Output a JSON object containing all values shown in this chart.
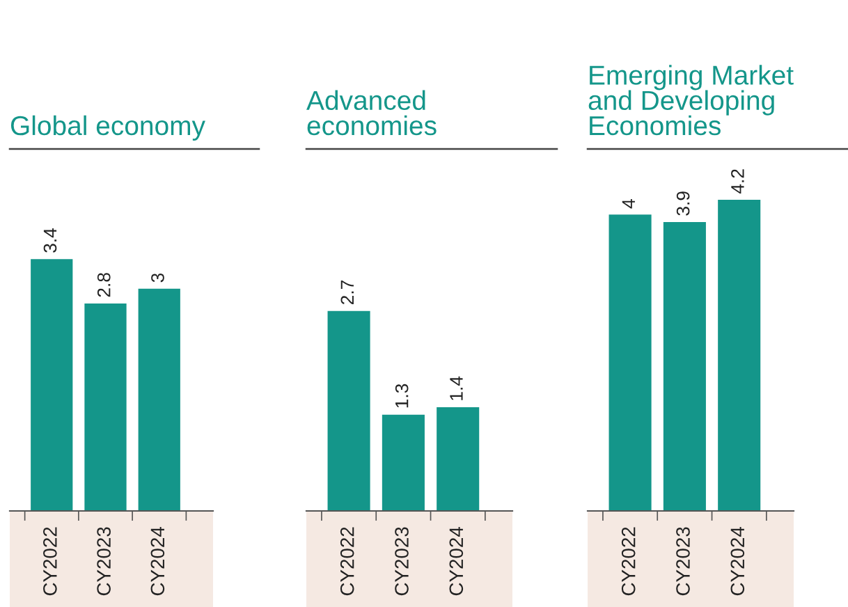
{
  "chart_data": [
    {
      "type": "bar",
      "title": "Global economy",
      "categories": [
        "CY2022",
        "CY2023",
        "CY2024"
      ],
      "values": [
        3.4,
        2.8,
        3
      ],
      "color": "#14968a",
      "data_labels": true
    },
    {
      "type": "bar",
      "title": "Advanced economies",
      "categories": [
        "CY2022",
        "CY2023",
        "CY2024"
      ],
      "values": [
        2.7,
        1.3,
        1.4
      ],
      "color": "#14968a",
      "data_labels": true
    },
    {
      "type": "bar",
      "title": "Emerging Market and Developing Economies",
      "categories": [
        "CY2022",
        "CY2023",
        "CY2024"
      ],
      "values": [
        4,
        3.9,
        4.2
      ],
      "color": "#14968a",
      "data_labels": true
    }
  ]
}
